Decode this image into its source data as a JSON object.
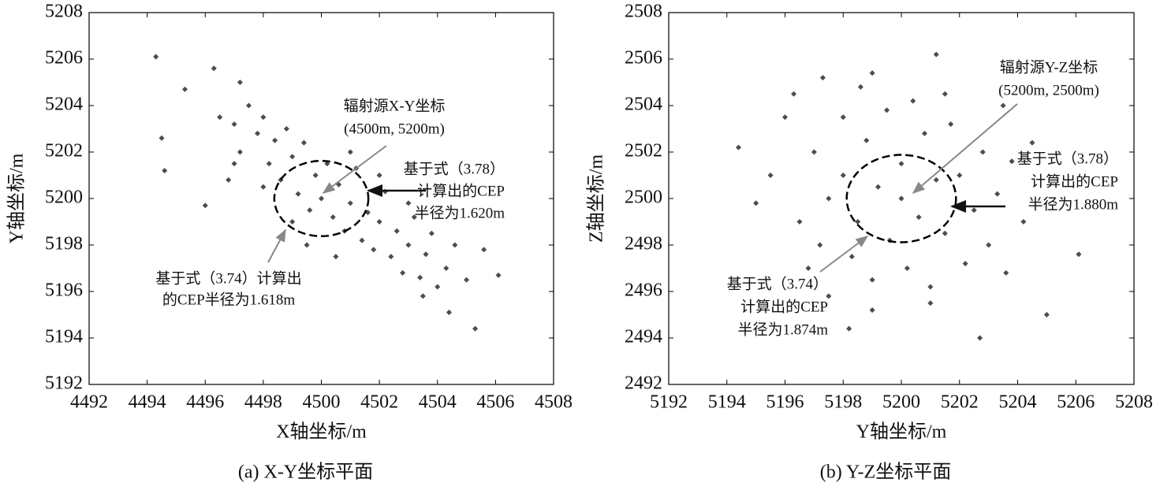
{
  "chart_data": [
    {
      "type": "scatter",
      "color": "#4d4d4d",
      "xlabel": "X轴坐标/m",
      "ylabel": "Y轴坐标/m",
      "caption": "(a)  X-Y坐标平面",
      "xlim": [
        4492,
        4508
      ],
      "ylim": [
        5192,
        5208
      ],
      "xticks": [
        4492,
        4494,
        4496,
        4498,
        4500,
        4502,
        4504,
        4506,
        4508
      ],
      "yticks": [
        5192,
        5194,
        5196,
        5198,
        5200,
        5202,
        5204,
        5206,
        5208
      ],
      "x": [
        4494.3,
        4494.6,
        4494.5,
        4496,
        4496.3,
        4497.2,
        4495.3,
        4505.3,
        4506.1,
        4505.6,
        4504.4,
        4503.5,
        4496.5,
        4497,
        4497.2,
        4497.5,
        4497.8,
        4498,
        4498.2,
        4498.4,
        4498.6,
        4498.8,
        4499,
        4499.2,
        4499.4,
        4499.6,
        4499.8,
        4500,
        4500.2,
        4500.4,
        4500.6,
        4500.8,
        4501,
        4501.2,
        4501.4,
        4501.6,
        4501.8,
        4502,
        4502.2,
        4502.4,
        4502.6,
        4502.8,
        4503,
        4503.2,
        4503.4,
        4503.6,
        4503.8,
        4504,
        4504.3,
        4504.6,
        4505,
        4499,
        4498,
        4497,
        4496.8,
        4501,
        4502,
        4503,
        4500.5,
        4499.5
      ],
      "y": [
        5206.1,
        5201.2,
        5202.6,
        5199.7,
        5205.6,
        5205,
        5204.7,
        5194.4,
        5196.7,
        5197.8,
        5195.1,
        5195.8,
        5203.5,
        5203.2,
        5202,
        5204,
        5202.8,
        5203.5,
        5201.5,
        5202.5,
        5200.8,
        5203,
        5201.8,
        5200.2,
        5202.4,
        5199.5,
        5201,
        5200,
        5201.5,
        5199.2,
        5200.6,
        5198.6,
        5199.8,
        5201.3,
        5198.2,
        5199.4,
        5197.8,
        5199,
        5200.3,
        5197.5,
        5198.6,
        5196.8,
        5198,
        5199.2,
        5196.6,
        5197.6,
        5198.5,
        5196.2,
        5197,
        5198,
        5196.5,
        5199,
        5200.5,
        5201.5,
        5200.8,
        5202,
        5201,
        5199.8,
        5197.5,
        5198
      ],
      "cep_circle": {
        "center": [
          4500,
          5200
        ],
        "radius": 1.62
      },
      "annotations": [
        [
          "辐射源X-Y坐标",
          "(4500m, 5200m)"
        ],
        [
          "基于式（3.78）",
          "计算出的CEP",
          "半径为1.620m"
        ],
        [
          "基于式（3.74）计算出",
          "的CEP半径为1.618m"
        ]
      ]
    },
    {
      "type": "scatter",
      "color": "#4d4d4d",
      "xlabel": "Y轴坐标/m",
      "ylabel": "Z轴坐标/m",
      "caption": "(b)  Y-Z坐标平面",
      "xlim": [
        5192,
        5208
      ],
      "ylim": [
        2492,
        2508
      ],
      "xticks": [
        5192,
        5194,
        5196,
        5198,
        5200,
        5202,
        5204,
        5206,
        5208
      ],
      "yticks": [
        2492,
        2494,
        2496,
        2498,
        2500,
        2502,
        2504,
        2506,
        2508
      ],
      "x": [
        5194.4,
        5195,
        5196,
        5196.3,
        5197.3,
        5201.2,
        5206.1,
        5205,
        5202.7,
        5198.2,
        5197.5,
        5195.5,
        5204.5,
        5203.5,
        5199,
        5197,
        5197.5,
        5197.2,
        5198,
        5198,
        5198.3,
        5198.5,
        5198.8,
        5199,
        5199.2,
        5199.5,
        5199.6,
        5200,
        5200,
        5200.2,
        5200.4,
        5200.6,
        5200.8,
        5201,
        5201.2,
        5201.5,
        5201.7,
        5202,
        5202.2,
        5202.5,
        5202.8,
        5203,
        5203.3,
        5203.6,
        5196.5,
        5196.8,
        5201,
        5199,
        5203.8,
        5204.2,
        5198.6,
        5201.5
      ],
      "y": [
        2502.2,
        2499.8,
        2503.5,
        2504.5,
        2505.2,
        2506.2,
        2497.6,
        2495,
        2494,
        2494.4,
        2495.8,
        2501,
        2502.4,
        2504,
        2505.4,
        2502,
        2500,
        2498,
        2503.5,
        2501,
        2497.5,
        2499,
        2502.5,
        2496.5,
        2500.5,
        2503.8,
        2498.2,
        2501.5,
        2500,
        2497,
        2504.2,
        2499.2,
        2502.8,
        2496.2,
        2500.8,
        2498.5,
        2503.2,
        2501,
        2497.2,
        2499.5,
        2502,
        2498,
        2500.2,
        2496.8,
        2499,
        2497,
        2495.5,
        2495.2,
        2501.6,
        2499,
        2504.8,
        2504.5
      ],
      "cep_circle": {
        "center": [
          5200,
          2500
        ],
        "radius": 1.88
      },
      "annotations": [
        [
          "辐射源Y-Z坐标",
          "(5200m, 2500m)"
        ],
        [
          "基于式（3.78）",
          "计算出的CEP",
          "半径为1.880m"
        ],
        [
          "基于式（3.74）",
          "计算出的CEP",
          "半径为1.874m"
        ]
      ]
    }
  ]
}
